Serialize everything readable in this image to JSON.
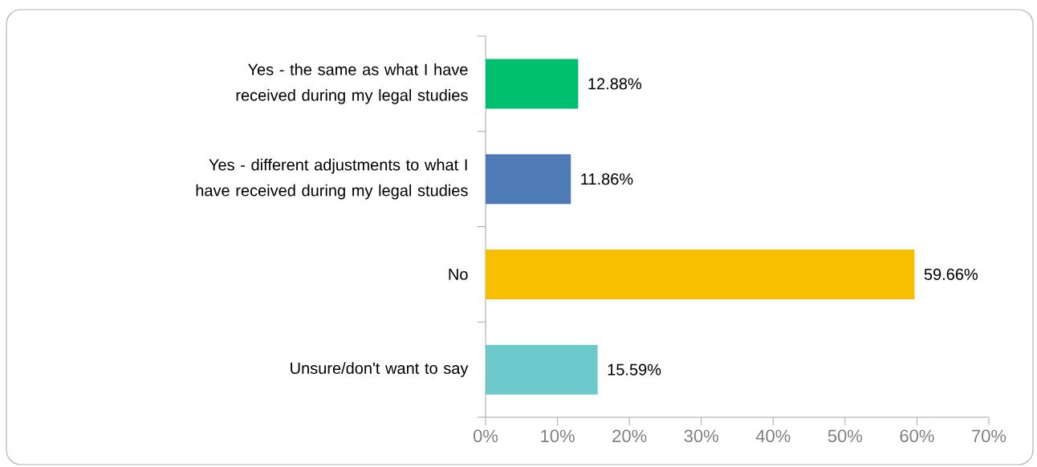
{
  "chart_data": {
    "type": "bar",
    "orientation": "horizontal",
    "categories": [
      "Yes - the same as what I have received during my legal studies",
      "Yes - different adjustments to what I have received during my legal studies",
      "No",
      "Unsure/don't want to say"
    ],
    "values": [
      12.88,
      11.86,
      59.66,
      15.59
    ],
    "colors": [
      "#00bf6f",
      "#4e7ab5",
      "#f7bf00",
      "#6cc9cc"
    ],
    "value_labels": [
      "12.88%",
      "11.86%",
      "59.66%",
      "15.59%"
    ],
    "xlim": [
      0,
      70
    ],
    "xticks": [
      {
        "value": 0,
        "label": "0%"
      },
      {
        "value": 10,
        "label": "10%"
      },
      {
        "value": 20,
        "label": "20%"
      },
      {
        "value": 30,
        "label": "30%"
      },
      {
        "value": 40,
        "label": "40%"
      },
      {
        "value": 50,
        "label": "50%"
      },
      {
        "value": 60,
        "label": "60%"
      },
      {
        "value": 70,
        "label": "70%"
      }
    ],
    "grid": false
  }
}
